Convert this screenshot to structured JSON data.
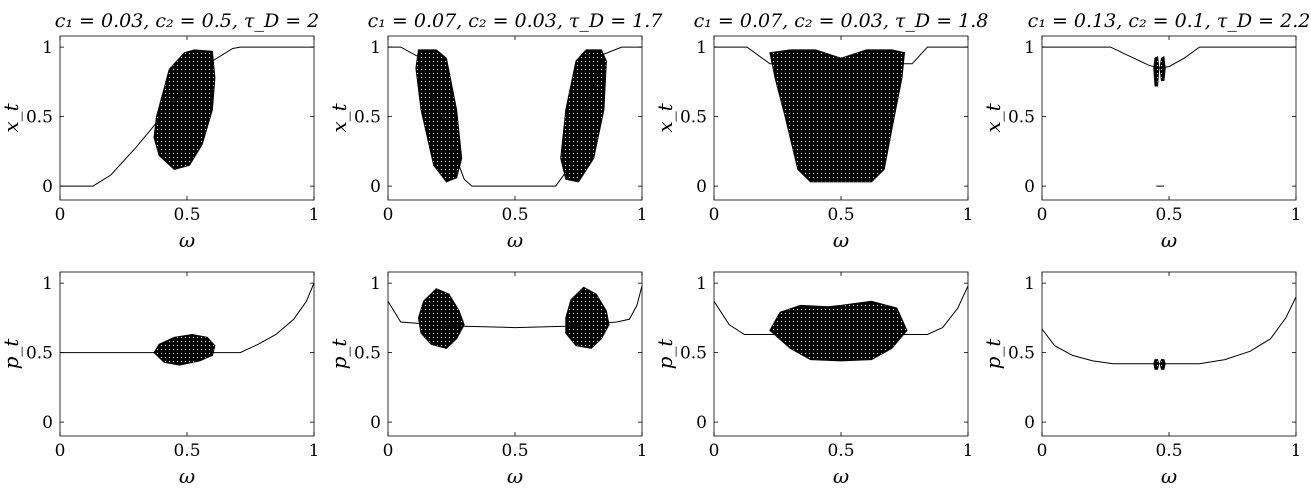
{
  "figure_colors": {
    "background": "#ffffff",
    "ink": "#000000"
  },
  "chart_data": [
    {
      "type": "scatter",
      "title": "c₁ = 0.03, c₂ = 0.5, τ_D = 2",
      "xlabel": "ω",
      "ylabel": "x_t",
      "xlim": [
        0,
        1
      ],
      "ylim": [
        -0.1,
        1.08
      ],
      "xticks": [
        {
          "v": 0,
          "label": "0"
        },
        {
          "v": 0.5,
          "label": "0.5"
        },
        {
          "v": 1,
          "label": "1"
        }
      ],
      "yticks": [
        {
          "v": 0,
          "label": "0"
        },
        {
          "v": 0.5,
          "label": "0.5"
        },
        {
          "v": 1,
          "label": "1"
        }
      ],
      "curve": [
        [
          0,
          0
        ],
        [
          0.13,
          0
        ],
        [
          0.2,
          0.08
        ],
        [
          0.3,
          0.28
        ],
        [
          0.4,
          0.5
        ],
        [
          0.5,
          0.72
        ],
        [
          0.6,
          0.9
        ],
        [
          0.68,
          0.99
        ],
        [
          0.71,
          1
        ],
        [
          1,
          1
        ]
      ],
      "chaotic_regions": [
        {
          "points": [
            [
              0.38,
              0.5
            ],
            [
              0.37,
              0.35
            ],
            [
              0.39,
              0.22
            ],
            [
              0.45,
              0.12
            ],
            [
              0.51,
              0.15
            ],
            [
              0.56,
              0.3
            ],
            [
              0.6,
              0.55
            ],
            [
              0.61,
              0.78
            ],
            [
              0.6,
              0.97
            ],
            [
              0.53,
              0.98
            ],
            [
              0.49,
              0.96
            ],
            [
              0.43,
              0.84
            ]
          ]
        }
      ]
    },
    {
      "type": "scatter",
      "title": "c₁ = 0.07, c₂ = 0.03, τ_D = 1.7",
      "xlabel": "ω",
      "ylabel": "x_t",
      "xlim": [
        0,
        1
      ],
      "ylim": [
        -0.1,
        1.08
      ],
      "xticks": [
        {
          "v": 0,
          "label": "0"
        },
        {
          "v": 0.5,
          "label": "0.5"
        },
        {
          "v": 1,
          "label": "1"
        }
      ],
      "yticks": [
        {
          "v": 0,
          "label": "0"
        },
        {
          "v": 0.5,
          "label": "0.5"
        },
        {
          "v": 1,
          "label": "1"
        }
      ],
      "curve": [
        [
          0,
          1
        ],
        [
          0.05,
          1
        ],
        [
          0.12,
          0.93
        ],
        [
          0.3,
          0.05
        ],
        [
          0.33,
          0
        ],
        [
          0.66,
          0
        ],
        [
          0.7,
          0.1
        ],
        [
          0.85,
          0.95
        ],
        [
          0.92,
          1
        ],
        [
          1,
          1
        ]
      ],
      "chaotic_regions": [
        {
          "points": [
            [
              0.12,
              0.98
            ],
            [
              0.19,
              0.98
            ],
            [
              0.23,
              0.92
            ],
            [
              0.27,
              0.55
            ],
            [
              0.29,
              0.2
            ],
            [
              0.27,
              0.06
            ],
            [
              0.23,
              0.03
            ],
            [
              0.18,
              0.15
            ],
            [
              0.13,
              0.55
            ],
            [
              0.11,
              0.85
            ]
          ]
        },
        {
          "points": [
            [
              0.74,
              0.9
            ],
            [
              0.78,
              0.98
            ],
            [
              0.84,
              0.98
            ],
            [
              0.86,
              0.9
            ],
            [
              0.85,
              0.55
            ],
            [
              0.81,
              0.2
            ],
            [
              0.75,
              0.03
            ],
            [
              0.7,
              0.05
            ],
            [
              0.68,
              0.2
            ],
            [
              0.7,
              0.55
            ]
          ]
        }
      ]
    },
    {
      "type": "scatter",
      "title": "c₁ = 0.07, c₂ = 0.03, τ_D = 1.8",
      "xlabel": "ω",
      "ylabel": "x_t",
      "xlim": [
        0,
        1
      ],
      "ylim": [
        -0.1,
        1.08
      ],
      "xticks": [
        {
          "v": 0,
          "label": "0"
        },
        {
          "v": 0.5,
          "label": "0.5"
        },
        {
          "v": 1,
          "label": "1"
        }
      ],
      "yticks": [
        {
          "v": 0,
          "label": "0"
        },
        {
          "v": 0.5,
          "label": "0.5"
        },
        {
          "v": 1,
          "label": "1"
        }
      ],
      "curve": [
        [
          0,
          1
        ],
        [
          0.13,
          1
        ],
        [
          0.22,
          0.88
        ],
        [
          0.78,
          0.88
        ],
        [
          0.84,
          1
        ],
        [
          1,
          1
        ]
      ],
      "chaotic_regions": [
        {
          "points": [
            [
              0.22,
              0.96
            ],
            [
              0.3,
              0.98
            ],
            [
              0.4,
              0.98
            ],
            [
              0.5,
              0.92
            ],
            [
              0.6,
              0.98
            ],
            [
              0.7,
              0.98
            ],
            [
              0.75,
              0.96
            ],
            [
              0.74,
              0.78
            ],
            [
              0.71,
              0.5
            ],
            [
              0.67,
              0.12
            ],
            [
              0.62,
              0.03
            ],
            [
              0.38,
              0.03
            ],
            [
              0.33,
              0.12
            ],
            [
              0.28,
              0.5
            ],
            [
              0.24,
              0.78
            ]
          ]
        }
      ]
    },
    {
      "type": "scatter",
      "title": "c₁ = 0.13, c₂ = 0.1, τ_D = 2.2",
      "xlabel": "ω",
      "ylabel": "x_t",
      "xlim": [
        0,
        1
      ],
      "ylim": [
        -0.1,
        1.08
      ],
      "xticks": [
        {
          "v": 0,
          "label": "0"
        },
        {
          "v": 0.5,
          "label": "0.5"
        },
        {
          "v": 1,
          "label": "1"
        }
      ],
      "yticks": [
        {
          "v": 0,
          "label": "0"
        },
        {
          "v": 0.5,
          "label": "0.5"
        },
        {
          "v": 1,
          "label": "1"
        }
      ],
      "curve": [
        [
          0,
          1
        ],
        [
          0.27,
          1
        ],
        [
          0.35,
          0.93
        ],
        [
          0.42,
          0.87
        ],
        [
          0.46,
          0.85
        ],
        [
          0.5,
          0.86
        ],
        [
          0.56,
          0.92
        ],
        [
          0.62,
          1
        ],
        [
          1,
          1
        ]
      ],
      "chaotic_regions": [
        {
          "points": [
            [
              0.445,
              0.92
            ],
            [
              0.455,
              0.93
            ],
            [
              0.46,
              0.85
            ],
            [
              0.455,
              0.72
            ],
            [
              0.445,
              0.72
            ],
            [
              0.44,
              0.85
            ]
          ]
        },
        {
          "points": [
            [
              0.47,
              0.92
            ],
            [
              0.48,
              0.93
            ],
            [
              0.485,
              0.85
            ],
            [
              0.48,
              0.76
            ],
            [
              0.47,
              0.76
            ],
            [
              0.465,
              0.85
            ]
          ]
        }
      ],
      "extra_segments": [
        [
          [
            0.45,
            0
          ],
          [
            0.48,
            0
          ]
        ]
      ]
    },
    {
      "type": "scatter",
      "title": "",
      "xlabel": "ω",
      "ylabel": "p_t",
      "xlim": [
        0,
        1
      ],
      "ylim": [
        -0.1,
        1.08
      ],
      "xticks": [
        {
          "v": 0,
          "label": "0"
        },
        {
          "v": 0.5,
          "label": "0.5"
        },
        {
          "v": 1,
          "label": "1"
        }
      ],
      "yticks": [
        {
          "v": 0,
          "label": "0"
        },
        {
          "v": 0.5,
          "label": "0.5"
        },
        {
          "v": 1,
          "label": "1"
        }
      ],
      "curve": [
        [
          0,
          0.5
        ],
        [
          0.71,
          0.5
        ],
        [
          0.78,
          0.56
        ],
        [
          0.85,
          0.63
        ],
        [
          0.92,
          0.74
        ],
        [
          0.97,
          0.87
        ],
        [
          1,
          1
        ]
      ],
      "chaotic_regions": [
        {
          "points": [
            [
              0.37,
              0.5
            ],
            [
              0.39,
              0.56
            ],
            [
              0.45,
              0.61
            ],
            [
              0.52,
              0.63
            ],
            [
              0.58,
              0.61
            ],
            [
              0.61,
              0.55
            ],
            [
              0.6,
              0.48
            ],
            [
              0.55,
              0.44
            ],
            [
              0.47,
              0.41
            ],
            [
              0.41,
              0.43
            ]
          ]
        }
      ]
    },
    {
      "type": "scatter",
      "title": "",
      "xlabel": "ω",
      "ylabel": "p_t",
      "xlim": [
        0,
        1
      ],
      "ylim": [
        -0.1,
        1.08
      ],
      "xticks": [
        {
          "v": 0,
          "label": "0"
        },
        {
          "v": 0.5,
          "label": "0.5"
        },
        {
          "v": 1,
          "label": "1"
        }
      ],
      "yticks": [
        {
          "v": 0,
          "label": "0"
        },
        {
          "v": 0.5,
          "label": "0.5"
        },
        {
          "v": 1,
          "label": "1"
        }
      ],
      "curve": [
        [
          0,
          0.87
        ],
        [
          0.05,
          0.72
        ],
        [
          0.12,
          0.71
        ],
        [
          0.3,
          0.69
        ],
        [
          0.5,
          0.68
        ],
        [
          0.7,
          0.69
        ],
        [
          0.9,
          0.72
        ],
        [
          0.95,
          0.74
        ],
        [
          0.98,
          0.84
        ],
        [
          1,
          0.98
        ]
      ],
      "chaotic_regions": [
        {
          "points": [
            [
              0.12,
              0.75
            ],
            [
              0.14,
              0.87
            ],
            [
              0.19,
              0.96
            ],
            [
              0.24,
              0.92
            ],
            [
              0.28,
              0.8
            ],
            [
              0.3,
              0.7
            ],
            [
              0.27,
              0.6
            ],
            [
              0.23,
              0.53
            ],
            [
              0.17,
              0.56
            ],
            [
              0.13,
              0.64
            ]
          ]
        },
        {
          "points": [
            [
              0.7,
              0.75
            ],
            [
              0.72,
              0.88
            ],
            [
              0.77,
              0.97
            ],
            [
              0.82,
              0.92
            ],
            [
              0.86,
              0.8
            ],
            [
              0.87,
              0.7
            ],
            [
              0.84,
              0.6
            ],
            [
              0.8,
              0.53
            ],
            [
              0.74,
              0.55
            ],
            [
              0.7,
              0.64
            ]
          ]
        }
      ]
    },
    {
      "type": "scatter",
      "title": "",
      "xlabel": "ω",
      "ylabel": "p_t",
      "xlim": [
        0,
        1
      ],
      "ylim": [
        -0.1,
        1.08
      ],
      "xticks": [
        {
          "v": 0,
          "label": "0"
        },
        {
          "v": 0.5,
          "label": "0.5"
        },
        {
          "v": 1,
          "label": "1"
        }
      ],
      "yticks": [
        {
          "v": 0,
          "label": "0"
        },
        {
          "v": 0.5,
          "label": "0.5"
        },
        {
          "v": 1,
          "label": "1"
        }
      ],
      "curve": [
        [
          0,
          0.87
        ],
        [
          0.06,
          0.7
        ],
        [
          0.12,
          0.63
        ],
        [
          0.22,
          0.63
        ],
        [
          0.5,
          0.63
        ],
        [
          0.76,
          0.63
        ],
        [
          0.84,
          0.63
        ],
        [
          0.9,
          0.68
        ],
        [
          0.96,
          0.82
        ],
        [
          1,
          0.98
        ]
      ],
      "chaotic_regions": [
        {
          "points": [
            [
              0.22,
              0.66
            ],
            [
              0.26,
              0.79
            ],
            [
              0.34,
              0.84
            ],
            [
              0.45,
              0.83
            ],
            [
              0.5,
              0.84
            ],
            [
              0.62,
              0.87
            ],
            [
              0.72,
              0.82
            ],
            [
              0.76,
              0.66
            ],
            [
              0.7,
              0.53
            ],
            [
              0.62,
              0.45
            ],
            [
              0.5,
              0.44
            ],
            [
              0.38,
              0.45
            ],
            [
              0.3,
              0.53
            ]
          ]
        }
      ]
    },
    {
      "type": "scatter",
      "title": "",
      "xlabel": "ω",
      "ylabel": "p_t",
      "xlim": [
        0,
        1
      ],
      "ylim": [
        -0.1,
        1.08
      ],
      "xticks": [
        {
          "v": 0,
          "label": "0"
        },
        {
          "v": 0.5,
          "label": "0.5"
        },
        {
          "v": 1,
          "label": "1"
        }
      ],
      "yticks": [
        {
          "v": 0,
          "label": "0"
        },
        {
          "v": 0.5,
          "label": "0.5"
        },
        {
          "v": 1,
          "label": "1"
        }
      ],
      "curve": [
        [
          0,
          0.67
        ],
        [
          0.05,
          0.55
        ],
        [
          0.12,
          0.48
        ],
        [
          0.2,
          0.44
        ],
        [
          0.28,
          0.42
        ],
        [
          0.62,
          0.42
        ],
        [
          0.72,
          0.45
        ],
        [
          0.82,
          0.51
        ],
        [
          0.9,
          0.6
        ],
        [
          0.96,
          0.75
        ],
        [
          1,
          0.9
        ]
      ],
      "chaotic_regions": [
        {
          "points": [
            [
              0.445,
              0.45
            ],
            [
              0.455,
              0.45
            ],
            [
              0.46,
              0.42
            ],
            [
              0.455,
              0.38
            ],
            [
              0.445,
              0.38
            ],
            [
              0.44,
              0.42
            ]
          ]
        },
        {
          "points": [
            [
              0.47,
              0.45
            ],
            [
              0.48,
              0.45
            ],
            [
              0.485,
              0.42
            ],
            [
              0.48,
              0.38
            ],
            [
              0.47,
              0.38
            ],
            [
              0.465,
              0.42
            ]
          ]
        }
      ]
    }
  ]
}
